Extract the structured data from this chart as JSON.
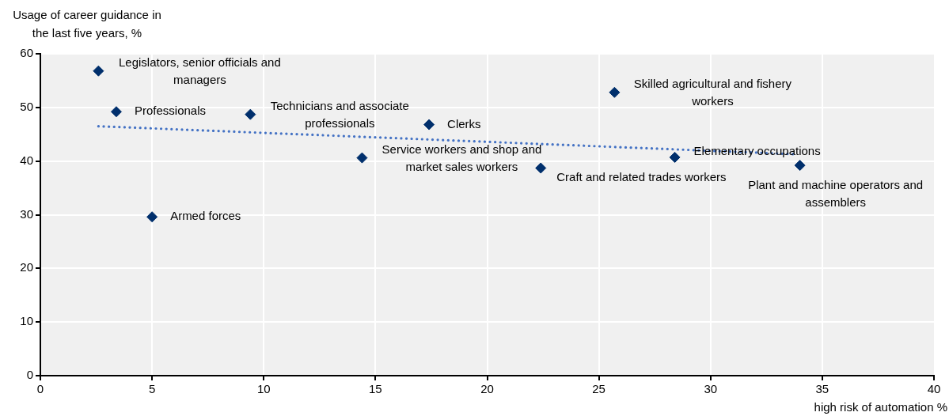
{
  "chart_data": {
    "type": "scatter",
    "xlabel": "high risk of automation %",
    "ylabel": "Usage of career guidance in the last five years, %",
    "xlim": [
      0,
      40
    ],
    "xticks": [
      0,
      5,
      10,
      15,
      20,
      25,
      30,
      35,
      40
    ],
    "ylim": [
      0,
      60
    ],
    "yticks": [
      0,
      10,
      20,
      30,
      40,
      50,
      60
    ],
    "grid": true,
    "legend": false,
    "marker": "diamond",
    "series": [
      {
        "color": "#002f6c",
        "x": [
          2.6,
          3.4,
          5.0,
          9.4,
          14.4,
          17.4,
          22.4,
          25.7,
          28.4,
          34.0
        ],
        "values": [
          56.8,
          49.2,
          29.6,
          48.7,
          40.6,
          46.8,
          38.7,
          52.8,
          40.7,
          39.2
        ]
      },
      {
        "type": "line",
        "line_style": "dotted",
        "marker": "none",
        "color": "#4472c4",
        "x": [
          2.6,
          33.7
        ],
        "values": [
          46.5,
          41.3
        ]
      }
    ],
    "annotations": [
      {
        "text": "Legislators, senior officials and managers",
        "x": 2.6,
        "y": 56.8
      },
      {
        "text": "Professionals",
        "x": 3.4,
        "y": 49.2
      },
      {
        "text": "Armed forces",
        "x": 5.0,
        "y": 29.6
      },
      {
        "text": "Technicians and associate professionals",
        "x": 9.4,
        "y": 48.7
      },
      {
        "text": "Service workers and shop and market sales workers",
        "x": 14.4,
        "y": 40.6
      },
      {
        "text": "Clerks",
        "x": 17.4,
        "y": 46.8
      },
      {
        "text": "Craft and related trades workers",
        "x": 22.4,
        "y": 38.7
      },
      {
        "text": "Skilled agricultural and fishery workers",
        "x": 25.7,
        "y": 52.8
      },
      {
        "text": "Elementary occupations",
        "x": 28.4,
        "y": 40.7
      },
      {
        "text": "Plant and machine operators and assemblers",
        "x": 34.0,
        "y": 39.2
      }
    ]
  }
}
